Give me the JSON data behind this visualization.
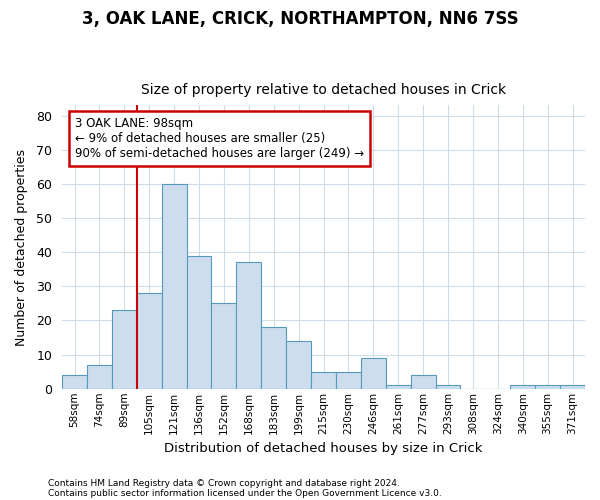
{
  "title1": "3, OAK LANE, CRICK, NORTHAMPTON, NN6 7SS",
  "title2": "Size of property relative to detached houses in Crick",
  "xlabel": "Distribution of detached houses by size in Crick",
  "ylabel": "Number of detached properties",
  "footnote1": "Contains HM Land Registry data © Crown copyright and database right 2024.",
  "footnote2": "Contains public sector information licensed under the Open Government Licence v3.0.",
  "categories": [
    "58sqm",
    "74sqm",
    "89sqm",
    "105sqm",
    "121sqm",
    "136sqm",
    "152sqm",
    "168sqm",
    "183sqm",
    "199sqm",
    "215sqm",
    "230sqm",
    "246sqm",
    "261sqm",
    "277sqm",
    "293sqm",
    "308sqm",
    "324sqm",
    "340sqm",
    "355sqm",
    "371sqm"
  ],
  "values": [
    4,
    7,
    23,
    28,
    60,
    39,
    25,
    37,
    18,
    14,
    5,
    5,
    9,
    1,
    4,
    1,
    0,
    0,
    1,
    1,
    1
  ],
  "bar_color": "#ccdded",
  "bar_edge_color": "#5599bb",
  "ylim": [
    0,
    83
  ],
  "yticks": [
    0,
    10,
    20,
    30,
    40,
    50,
    60,
    70,
    80
  ],
  "annotation_line1": "3 OAK LANE: 98sqm",
  "annotation_line2": "← 9% of detached houses are smaller (25)",
  "annotation_line3": "90% of semi-detached houses are larger (249) →",
  "annotation_box_color": "white",
  "annotation_box_edge": "#cc0000",
  "marker_line_color": "#cc0000",
  "marker_bar_index": 2,
  "background_color": "#ffffff",
  "grid_color": "#d0dce8",
  "title1_fontsize": 12,
  "title2_fontsize": 10
}
